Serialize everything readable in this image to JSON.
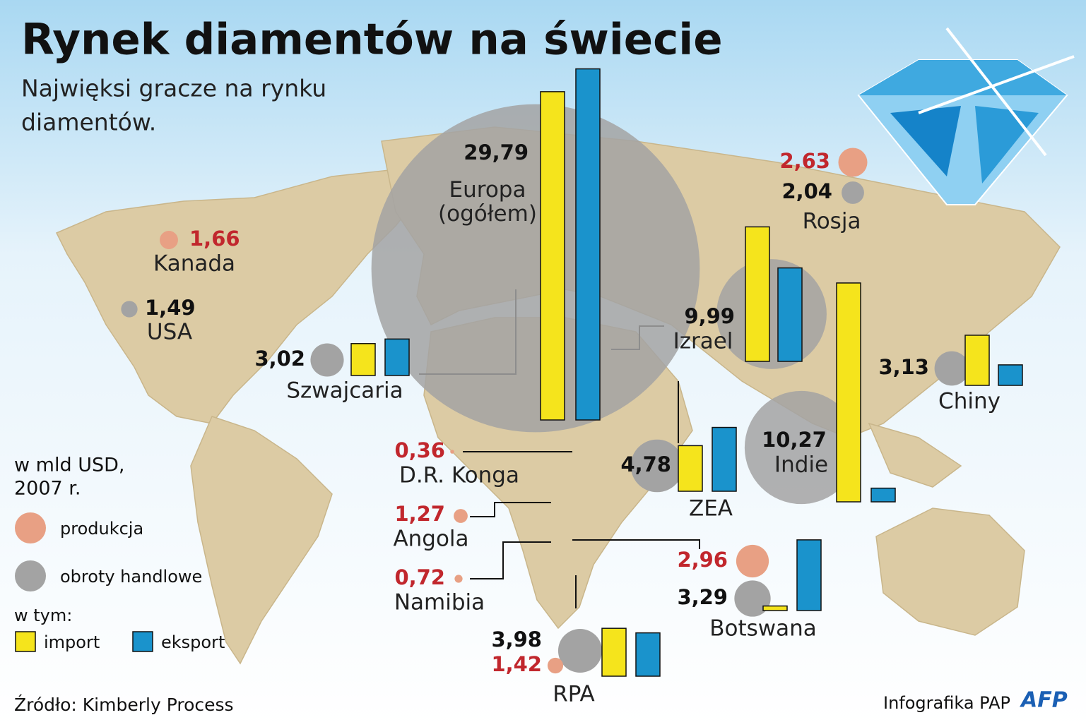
{
  "chart_data": {
    "type": "map",
    "title": "Rynek diamentów na świecie",
    "subtitle": [
      "Najwięksi gracze na rynku",
      "diamentów."
    ],
    "unit_label": [
      "w mld USD,",
      "2007 r."
    ],
    "legend_group_label": "w tym:",
    "source": "Źródło: Kimberly Process",
    "credit": "Infografika PAP",
    "logo": "AFP",
    "categories": [
      "Europa (ogółem)",
      "Rosja",
      "Kanada",
      "USA",
      "Szwajcaria",
      "Izrael",
      "Chiny",
      "Indie",
      "ZEA",
      "D.R. Konga",
      "Angola",
      "Namibia",
      "Botswana",
      "RPA"
    ],
    "series": [
      {
        "name": "produkcja",
        "color": "#e8a084",
        "values": [
          null,
          2.63,
          1.66,
          null,
          null,
          null,
          null,
          null,
          null,
          0.36,
          1.27,
          0.72,
          2.96,
          1.42
        ],
        "value_labels": [
          null,
          "2,63",
          "1,66",
          null,
          null,
          null,
          null,
          null,
          null,
          "0,36",
          "1,27",
          "0,72",
          "2,96",
          "1,42"
        ]
      },
      {
        "name": "obroty handlowe",
        "color": "#a3a3a3",
        "values": [
          29.79,
          2.04,
          null,
          1.49,
          3.02,
          9.99,
          3.13,
          10.27,
          4.78,
          null,
          null,
          null,
          3.29,
          3.98
        ],
        "value_labels": [
          "29,79",
          "2,04",
          null,
          "1,49",
          "3,02",
          "9,99",
          "3,13",
          "10,27",
          "4,78",
          null,
          null,
          null,
          "3,29",
          "3,98"
        ]
      },
      {
        "name": "import",
        "color": "#f5e41c",
        "values": [
          14.4,
          null,
          null,
          null,
          1.4,
          5.9,
          2.2,
          9.6,
          2.0,
          null,
          null,
          null,
          0.2,
          2.1
        ]
      },
      {
        "name": "eksport",
        "color": "#1a93cc",
        "values": [
          15.4,
          null,
          null,
          null,
          1.6,
          4.1,
          0.9,
          0.6,
          2.8,
          null,
          null,
          null,
          3.1,
          1.9
        ]
      }
    ]
  }
}
